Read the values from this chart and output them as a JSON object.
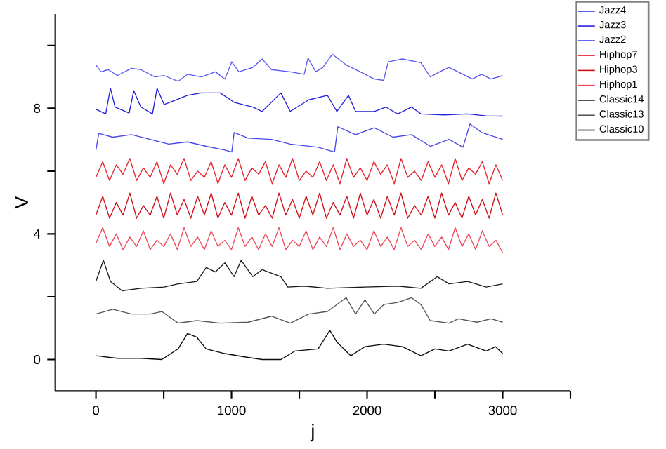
{
  "chart_data": {
    "type": "line",
    "xlabel": "j",
    "ylabel": "V",
    "xlim": [
      -300,
      3500
    ],
    "ylim": [
      -1,
      11
    ],
    "xticks": [
      0,
      {
        "value": 500,
        "label": null
      },
      1000,
      {
        "value": 1500,
        "label": null
      },
      2000,
      {
        "value": 2500,
        "label": null
      },
      3000,
      {
        "value": 3500,
        "label": null
      }
    ],
    "yticks": [
      0,
      {
        "value": 2,
        "label": null
      },
      4,
      {
        "value": 6,
        "label": null
      },
      8,
      {
        "value": 10,
        "label": null
      }
    ],
    "legend": "top right",
    "series": [
      {
        "name": "Jazz4",
        "color": "#5a5af0",
        "x": [
          0,
          38,
          90,
          158,
          262,
          331,
          434,
          503,
          606,
          675,
          778,
          882,
          951,
          1002,
          1054,
          1157,
          1226,
          1295,
          1433,
          1536,
          1564,
          1622,
          1674,
          1743,
          1846,
          1949,
          2053,
          2122,
          2156,
          2260,
          2397,
          2466,
          2535,
          2604,
          2707,
          2776,
          2845,
          2914,
          3000
        ],
        "values": [
          9.38,
          9.16,
          9.23,
          9.04,
          9.27,
          9.23,
          9.0,
          9.04,
          8.86,
          9.08,
          9.0,
          9.16,
          8.93,
          9.48,
          9.16,
          9.3,
          9.57,
          9.23,
          9.16,
          9.08,
          9.6,
          9.16,
          9.3,
          9.72,
          9.38,
          9.16,
          8.93,
          8.89,
          9.48,
          9.57,
          9.45,
          9.0,
          9.16,
          9.3,
          9.08,
          8.93,
          9.08,
          8.93,
          9.04
        ]
      },
      {
        "name": "Jazz3",
        "color": "#2020dd",
        "x": [
          0,
          72,
          107,
          141,
          245,
          279,
          331,
          417,
          451,
          503,
          675,
          778,
          916,
          1019,
          1157,
          1226,
          1364,
          1433,
          1570,
          1708,
          1777,
          1863,
          1915,
          2053,
          2139,
          2225,
          2328,
          2397,
          2569,
          2741,
          2879,
          3000
        ],
        "values": [
          7.97,
          7.82,
          8.64,
          8.04,
          7.85,
          8.56,
          8.04,
          7.82,
          8.64,
          8.12,
          8.41,
          8.49,
          8.49,
          8.19,
          8.04,
          7.9,
          8.49,
          7.9,
          8.27,
          8.41,
          7.9,
          8.41,
          7.9,
          7.9,
          8.04,
          7.82,
          8.04,
          7.82,
          7.79,
          7.82,
          7.76,
          7.75
        ]
      },
      {
        "name": "Jazz2",
        "color": "#4848ea",
        "x": [
          0,
          21,
          124,
          262,
          400,
          537,
          675,
          813,
          951,
          1002,
          1019,
          1123,
          1295,
          1433,
          1639,
          1760,
          1784,
          1915,
          2053,
          2191,
          2328,
          2466,
          2604,
          2707,
          2759,
          2845,
          3000
        ],
        "values": [
          6.67,
          7.2,
          7.08,
          7.16,
          7.01,
          6.86,
          6.93,
          6.79,
          6.67,
          6.61,
          7.23,
          7.05,
          7.01,
          6.86,
          6.76,
          6.61,
          7.41,
          7.16,
          7.38,
          7.08,
          7.16,
          6.79,
          7.01,
          6.76,
          7.5,
          7.23,
          7.01
        ]
      },
      {
        "name": "Hiphop7",
        "color": "#e8202a",
        "x": [
          0,
          50,
          100,
          150,
          200,
          250,
          300,
          350,
          400,
          450,
          500,
          550,
          600,
          650,
          700,
          750,
          800,
          850,
          900,
          950,
          1000,
          1050,
          1100,
          1150,
          1200,
          1250,
          1300,
          1350,
          1400,
          1450,
          1500,
          1550,
          1600,
          1650,
          1700,
          1750,
          1800,
          1850,
          1900,
          1950,
          2000,
          2050,
          2100,
          2150,
          2200,
          2250,
          2300,
          2350,
          2400,
          2450,
          2500,
          2550,
          2600,
          2650,
          2700,
          2750,
          2800,
          2850,
          2900,
          2950,
          3000
        ],
        "values": [
          5.8,
          6.3,
          5.7,
          6.2,
          5.9,
          6.4,
          5.7,
          6.1,
          5.8,
          6.3,
          5.6,
          6.2,
          5.9,
          6.4,
          5.7,
          6.0,
          5.8,
          6.3,
          5.6,
          6.2,
          5.8,
          6.4,
          5.7,
          6.1,
          5.9,
          6.3,
          5.6,
          6.2,
          5.8,
          6.4,
          5.7,
          6.0,
          5.8,
          6.3,
          5.7,
          6.2,
          5.6,
          6.4,
          5.8,
          6.1,
          5.7,
          6.3,
          5.9,
          6.2,
          5.6,
          6.4,
          5.8,
          6.0,
          5.7,
          6.3,
          5.8,
          6.2,
          5.6,
          6.4,
          5.7,
          6.1,
          5.9,
          6.3,
          5.6,
          6.2,
          5.7
        ]
      },
      {
        "name": "Hiphop3",
        "color": "#d01018",
        "x": [
          0,
          50,
          100,
          150,
          200,
          250,
          300,
          350,
          400,
          450,
          500,
          550,
          600,
          650,
          700,
          750,
          800,
          850,
          900,
          950,
          1000,
          1050,
          1100,
          1150,
          1200,
          1250,
          1300,
          1350,
          1400,
          1450,
          1500,
          1550,
          1600,
          1650,
          1700,
          1750,
          1800,
          1850,
          1900,
          1950,
          2000,
          2050,
          2100,
          2150,
          2200,
          2250,
          2300,
          2350,
          2400,
          2450,
          2500,
          2550,
          2600,
          2650,
          2700,
          2750,
          2800,
          2850,
          2900,
          2950,
          3000
        ],
        "values": [
          4.6,
          5.2,
          4.5,
          5.0,
          4.6,
          5.3,
          4.5,
          4.9,
          4.6,
          5.2,
          4.5,
          5.3,
          4.6,
          5.1,
          4.5,
          5.2,
          4.6,
          5.3,
          4.5,
          5.0,
          4.6,
          5.3,
          4.5,
          5.2,
          4.6,
          4.9,
          4.5,
          5.3,
          4.6,
          5.1,
          4.5,
          5.2,
          4.6,
          5.3,
          4.5,
          5.0,
          4.6,
          5.2,
          4.5,
          5.3,
          4.6,
          5.1,
          4.5,
          5.2,
          4.6,
          5.3,
          4.5,
          4.9,
          4.6,
          5.2,
          4.5,
          5.3,
          4.6,
          5.0,
          4.5,
          5.2,
          4.6,
          5.1,
          4.5,
          5.3,
          4.6
        ]
      },
      {
        "name": "Hiphop1",
        "color": "#f04858",
        "x": [
          0,
          50,
          100,
          150,
          200,
          250,
          300,
          350,
          400,
          450,
          500,
          550,
          600,
          650,
          700,
          750,
          800,
          850,
          900,
          950,
          1000,
          1050,
          1100,
          1150,
          1200,
          1250,
          1300,
          1350,
          1400,
          1450,
          1500,
          1550,
          1600,
          1650,
          1700,
          1750,
          1800,
          1850,
          1900,
          1950,
          2000,
          2050,
          2100,
          2150,
          2200,
          2250,
          2300,
          2350,
          2400,
          2450,
          2500,
          2550,
          2600,
          2650,
          2700,
          2750,
          2800,
          2850,
          2900,
          2950,
          3000
        ],
        "values": [
          3.7,
          4.2,
          3.6,
          4.0,
          3.5,
          3.9,
          3.6,
          4.1,
          3.5,
          3.8,
          3.6,
          4.0,
          3.5,
          4.2,
          3.6,
          3.9,
          3.5,
          4.1,
          3.6,
          3.8,
          3.5,
          4.2,
          3.6,
          3.9,
          3.5,
          4.0,
          3.6,
          4.2,
          3.5,
          3.8,
          3.6,
          4.1,
          3.5,
          3.9,
          3.6,
          4.2,
          3.5,
          4.0,
          3.6,
          3.8,
          3.5,
          4.1,
          3.6,
          3.9,
          3.5,
          4.2,
          3.6,
          3.8,
          3.5,
          4.0,
          3.6,
          3.9,
          3.5,
          4.2,
          3.6,
          4.0,
          3.5,
          4.1,
          3.6,
          3.8,
          3.4
        ]
      },
      {
        "name": "Classic14",
        "color": "#1a1a1a",
        "x": [
          0,
          55,
          107,
          193,
          331,
          503,
          606,
          744,
          813,
          882,
          951,
          1019,
          1071,
          1157,
          1226,
          1364,
          1416,
          1536,
          1708,
          1984,
          2225,
          2397,
          2518,
          2604,
          2741,
          2879,
          3000
        ],
        "values": [
          2.49,
          3.16,
          2.49,
          2.19,
          2.27,
          2.31,
          2.41,
          2.49,
          2.93,
          2.79,
          3.08,
          2.64,
          3.16,
          2.64,
          2.86,
          2.64,
          2.31,
          2.34,
          2.27,
          2.31,
          2.34,
          2.27,
          2.64,
          2.41,
          2.49,
          2.31,
          2.41
        ]
      },
      {
        "name": "Classic13",
        "color": "#555555",
        "x": [
          0,
          124,
          262,
          400,
          486,
          606,
          744,
          916,
          1123,
          1295,
          1433,
          1570,
          1708,
          1846,
          1915,
          1984,
          2053,
          2122,
          2225,
          2328,
          2397,
          2466,
          2604,
          2673,
          2810,
          2914,
          3000
        ],
        "values": [
          1.45,
          1.6,
          1.45,
          1.45,
          1.53,
          1.16,
          1.24,
          1.16,
          1.19,
          1.38,
          1.16,
          1.45,
          1.53,
          1.97,
          1.45,
          1.9,
          1.45,
          1.75,
          1.82,
          1.97,
          1.75,
          1.24,
          1.16,
          1.3,
          1.19,
          1.3,
          1.19
        ]
      },
      {
        "name": "Classic10",
        "color": "#0a0a0a",
        "x": [
          0,
          158,
          331,
          486,
          606,
          675,
          744,
          813,
          951,
          1088,
          1226,
          1364,
          1467,
          1639,
          1725,
          1777,
          1880,
          1984,
          2122,
          2260,
          2397,
          2500,
          2604,
          2741,
          2879,
          2948,
          3000
        ],
        "values": [
          0.12,
          0.04,
          0.04,
          0,
          0.34,
          0.83,
          0.71,
          0.34,
          0.19,
          0.09,
          0,
          0,
          0.27,
          0.34,
          0.93,
          0.56,
          0.12,
          0.41,
          0.49,
          0.41,
          0.12,
          0.34,
          0.27,
          0.49,
          0.27,
          0.41,
          0.19
        ]
      }
    ]
  }
}
